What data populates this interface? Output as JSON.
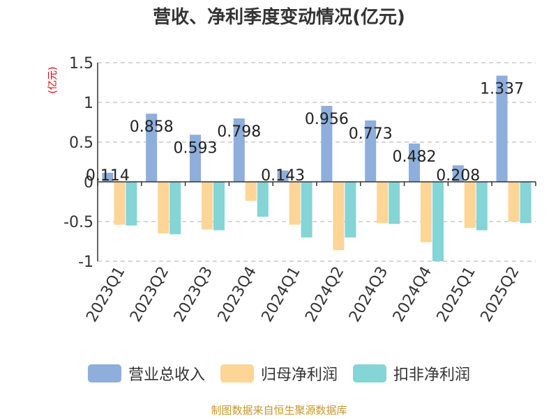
{
  "chart_data": {
    "type": "bar",
    "title": "营收、净利季度变动情况(亿元)",
    "ylabel": "(亿元)",
    "xlabel": "",
    "ylim": [
      -1,
      1.5
    ],
    "yticks": [
      -1,
      -0.5,
      0,
      0.5,
      1,
      1.5
    ],
    "ytick_labels": [
      "-1",
      "-0.5",
      "0",
      "0.5",
      "1",
      "1.5"
    ],
    "grid": true,
    "categories": [
      "2023Q1",
      "2023Q2",
      "2023Q3",
      "2023Q4",
      "2024Q1",
      "2024Q2",
      "2024Q3",
      "2024Q4",
      "2025Q1",
      "2025Q2"
    ],
    "series": [
      {
        "name": "营业总收入",
        "color": "#8eaedb",
        "values": [
          0.114,
          0.858,
          0.593,
          0.798,
          0.143,
          0.956,
          0.773,
          0.482,
          0.208,
          1.337
        ],
        "labels": [
          "0.114",
          "0.858",
          "0.593",
          "0.798",
          "0.143",
          "0.956",
          "0.773",
          "0.482",
          "0.208",
          "1.337"
        ]
      },
      {
        "name": "归母净利润",
        "color": "#fdd597",
        "values": [
          -0.54,
          -0.65,
          -0.6,
          -0.24,
          -0.54,
          -0.86,
          -0.52,
          -0.76,
          -0.58,
          -0.5
        ]
      },
      {
        "name": "扣非净利润",
        "color": "#85d4d6",
        "values": [
          -0.55,
          -0.66,
          -0.61,
          -0.44,
          -0.7,
          -0.7,
          -0.53,
          -1.0,
          -0.61,
          -0.52
        ]
      }
    ],
    "legend_position": "bottom"
  },
  "footer": {
    "source": "制图数据来自恒生聚源数据库"
  }
}
